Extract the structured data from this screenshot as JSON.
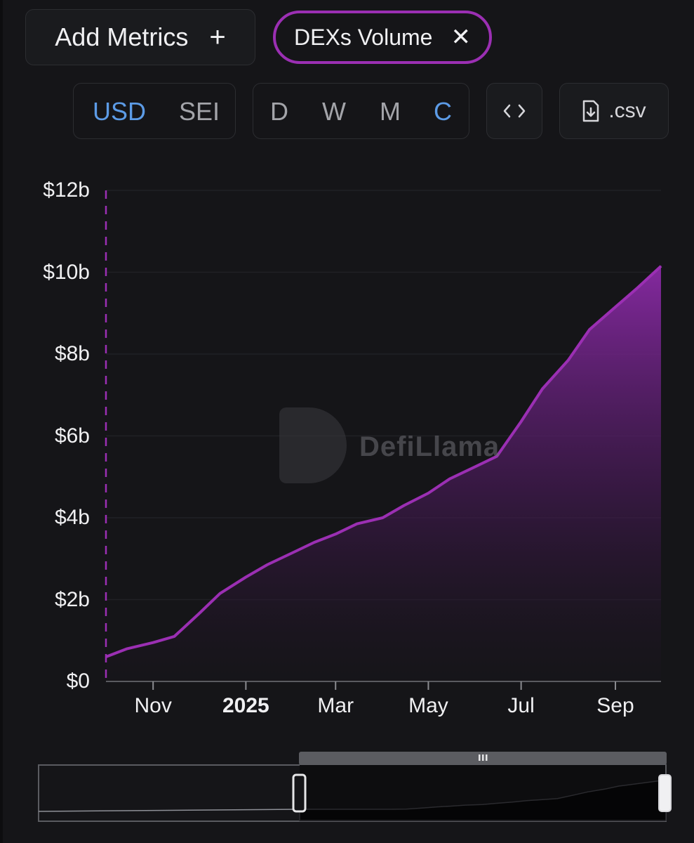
{
  "toolbar": {
    "add_metrics_label": "Add Metrics",
    "add_icon": "plus-icon",
    "metric_tag_label": "DEXs Volume",
    "close_icon": "close-icon",
    "currency_options": [
      "USD",
      "SEI"
    ],
    "currency_selected": "USD",
    "granularity_options": [
      "D",
      "W",
      "M",
      "C"
    ],
    "granularity_selected": "C",
    "embed_icon": "code-brackets-icon",
    "csv_icon": "file-download-icon",
    "csv_label": ".csv",
    "accent_color": "#9b2fb3",
    "active_color": "#5c9be6"
  },
  "watermark": {
    "text": "DefiLlama",
    "icon": "llama-logo-icon"
  },
  "chart_data": {
    "type": "area",
    "title": "",
    "xlabel": "",
    "ylabel": "",
    "series": [
      {
        "name": "DEXs Volume",
        "color": "#9b2fb3",
        "points": [
          [
            "2024-10-01",
            0.6
          ],
          [
            "2024-10-15",
            0.8
          ],
          [
            "2024-11-01",
            0.95
          ],
          [
            "2024-11-15",
            1.1
          ],
          [
            "2024-12-01",
            1.65
          ],
          [
            "2024-12-15",
            2.15
          ],
          [
            "2025-01-01",
            2.55
          ],
          [
            "2025-01-15",
            2.85
          ],
          [
            "2025-02-01",
            3.15
          ],
          [
            "2025-02-15",
            3.4
          ],
          [
            "2025-03-01",
            3.6
          ],
          [
            "2025-03-15",
            3.85
          ],
          [
            "2025-04-01",
            4.0
          ],
          [
            "2025-04-15",
            4.3
          ],
          [
            "2025-05-01",
            4.6
          ],
          [
            "2025-05-15",
            4.95
          ],
          [
            "2025-06-01",
            5.25
          ],
          [
            "2025-06-15",
            5.5
          ],
          [
            "2025-07-01",
            6.35
          ],
          [
            "2025-07-15",
            7.15
          ],
          [
            "2025-08-01",
            7.85
          ],
          [
            "2025-08-15",
            8.6
          ],
          [
            "2025-09-01",
            9.15
          ],
          [
            "2025-09-15",
            9.6
          ],
          [
            "2025-10-01",
            10.15
          ]
        ]
      }
    ],
    "x_range": [
      "2024-10-01",
      "2025-10-01"
    ],
    "x_ticks": [
      {
        "label": "Nov",
        "date": "2024-11-01",
        "bold": false
      },
      {
        "label": "2025",
        "date": "2025-01-01",
        "bold": true
      },
      {
        "label": "Mar",
        "date": "2025-03-01",
        "bold": false
      },
      {
        "label": "May",
        "date": "2025-05-01",
        "bold": false
      },
      {
        "label": "Jul",
        "date": "2025-07-01",
        "bold": false
      },
      {
        "label": "Sep",
        "date": "2025-09-01",
        "bold": false
      }
    ],
    "y_ticks": [
      {
        "label": "$0",
        "value": 0
      },
      {
        "label": "$2b",
        "value": 2
      },
      {
        "label": "$4b",
        "value": 4
      },
      {
        "label": "$6b",
        "value": 6
      },
      {
        "label": "$8b",
        "value": 8
      },
      {
        "label": "$10b",
        "value": 10
      },
      {
        "label": "$12b",
        "value": 12
      }
    ],
    "ylim": [
      0,
      12
    ],
    "y_unit": "billion USD",
    "grid": true,
    "marker_line": "dashed vertical line at start of data",
    "brush": {
      "selected_start": "2024-10-01",
      "selected_end": "2025-10-01"
    }
  }
}
